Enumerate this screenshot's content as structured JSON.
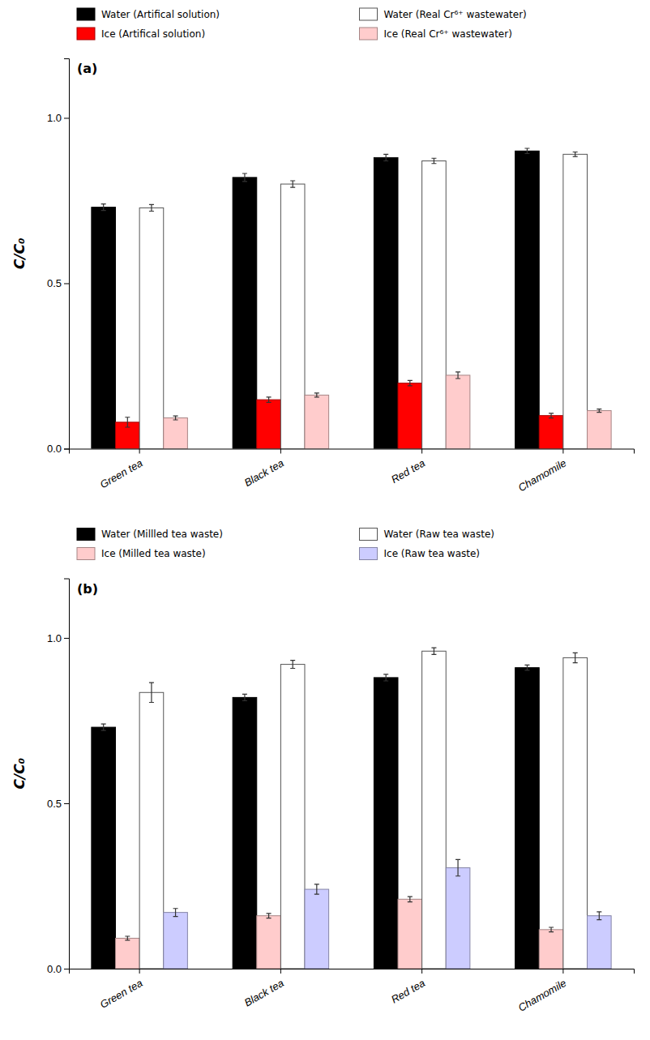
{
  "chart_data": [
    {
      "type": "bar",
      "title": "(a)",
      "categories": [
        "Green tea",
        "Black tea",
        "Red tea",
        "Chamomile"
      ],
      "series": [
        {
          "name": "Water (Artifical solution)",
          "color": "#000000",
          "values": [
            0.73,
            0.82,
            0.88,
            0.9
          ],
          "errors": [
            0.01,
            0.012,
            0.01,
            0.008
          ]
        },
        {
          "name": "Ice (Artifical solution)",
          "color": "#ff0000",
          "values": [
            0.08,
            0.148,
            0.198,
            0.1
          ],
          "errors": [
            0.015,
            0.008,
            0.008,
            0.007
          ]
        },
        {
          "name": "Water (Real Cr⁶⁺ wastewater)",
          "color": "#ffffff",
          "values": [
            0.728,
            0.8,
            0.87,
            0.89
          ],
          "errors": [
            0.01,
            0.01,
            0.008,
            0.007
          ]
        },
        {
          "name": "Ice (Real Cr⁶⁺ wastewater)",
          "color": "#ffcccc",
          "values": [
            0.093,
            0.162,
            0.222,
            0.115
          ],
          "errors": [
            0.006,
            0.006,
            0.01,
            0.005
          ]
        }
      ],
      "ylabel": "C/C₀",
      "ylim": [
        0.0,
        1.18
      ],
      "yticks": [
        {
          "value": 0.0,
          "label": "0.0"
        },
        {
          "value": 0.5,
          "label": "0.5"
        },
        {
          "value": 1.0,
          "label": "1.0"
        }
      ],
      "grid": false,
      "legend": "top"
    },
    {
      "type": "bar",
      "title": "(b)",
      "categories": [
        "Green tea",
        "Black tea",
        "Red tea",
        "Chamomile"
      ],
      "series": [
        {
          "name": "Water (Millled tea waste)",
          "color": "#000000",
          "values": [
            0.73,
            0.82,
            0.88,
            0.91
          ],
          "errors": [
            0.01,
            0.01,
            0.01,
            0.008
          ]
        },
        {
          "name": "Ice (Milled tea waste)",
          "color": "#ffcccc",
          "values": [
            0.092,
            0.16,
            0.21,
            0.118
          ],
          "errors": [
            0.006,
            0.007,
            0.008,
            0.007
          ]
        },
        {
          "name": "Water (Raw tea waste)",
          "color": "#ffffff",
          "values": [
            0.835,
            0.92,
            0.96,
            0.94
          ],
          "errors": [
            0.03,
            0.012,
            0.01,
            0.015
          ]
        },
        {
          "name": "Ice (Raw tea waste)",
          "color": "#ccccff",
          "values": [
            0.17,
            0.24,
            0.305,
            0.16
          ],
          "errors": [
            0.012,
            0.015,
            0.025,
            0.012
          ]
        }
      ],
      "ylabel": "C/C₀",
      "ylim": [
        0.0,
        1.18
      ],
      "yticks": [
        {
          "value": 0.0,
          "label": "0.0"
        },
        {
          "value": 0.5,
          "label": "0.5"
        },
        {
          "value": 1.0,
          "label": "1.0"
        }
      ],
      "grid": false,
      "legend": "top"
    }
  ]
}
